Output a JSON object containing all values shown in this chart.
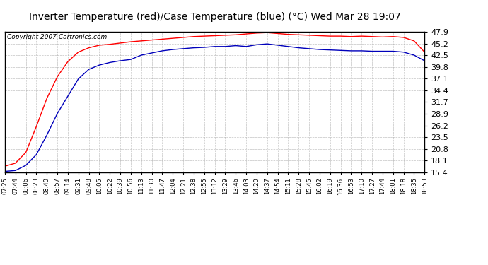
{
  "title": "Inverter Temperature (red)/Case Temperature (blue) (°C) Wed Mar 28 19:07",
  "copyright": "Copyright 2007 Cartronics.com",
  "yticks": [
    15.4,
    18.1,
    20.8,
    23.5,
    26.2,
    28.9,
    31.7,
    34.4,
    37.1,
    39.8,
    42.5,
    45.2,
    47.9
  ],
  "ymin": 15.4,
  "ymax": 47.9,
  "red_color": "#ff0000",
  "blue_color": "#0000bb",
  "bg_color": "#ffffff",
  "grid_color": "#aaaaaa",
  "xtick_labels": [
    "07:25",
    "07:44",
    "08:06",
    "08:23",
    "08:40",
    "08:57",
    "09:14",
    "09:31",
    "09:48",
    "10:05",
    "10:22",
    "10:39",
    "10:56",
    "11:13",
    "11:30",
    "11:47",
    "12:04",
    "12:21",
    "12:38",
    "12:55",
    "13:12",
    "13:29",
    "13:46",
    "14:03",
    "14:20",
    "14:37",
    "14:54",
    "15:11",
    "15:28",
    "15:45",
    "16:02",
    "16:19",
    "16:36",
    "16:53",
    "17:10",
    "17:27",
    "17:44",
    "18:01",
    "18:18",
    "18:35",
    "18:53"
  ],
  "red_data": [
    16.8,
    17.5,
    20.0,
    26.0,
    32.5,
    37.5,
    41.0,
    43.2,
    44.2,
    44.8,
    45.0,
    45.3,
    45.6,
    45.8,
    46.0,
    46.2,
    46.4,
    46.6,
    46.8,
    46.9,
    47.0,
    47.1,
    47.2,
    47.4,
    47.6,
    47.7,
    47.5,
    47.3,
    47.2,
    47.1,
    47.0,
    46.9,
    46.9,
    46.8,
    46.9,
    46.8,
    46.7,
    46.8,
    46.6,
    45.8,
    43.2
  ],
  "blue_data": [
    15.6,
    15.8,
    17.0,
    19.5,
    24.0,
    29.0,
    33.0,
    37.0,
    39.2,
    40.2,
    40.8,
    41.2,
    41.5,
    42.5,
    43.0,
    43.5,
    43.8,
    44.0,
    44.2,
    44.3,
    44.5,
    44.5,
    44.7,
    44.5,
    44.9,
    45.1,
    44.8,
    44.5,
    44.2,
    44.0,
    43.8,
    43.7,
    43.6,
    43.5,
    43.5,
    43.4,
    43.4,
    43.4,
    43.2,
    42.5,
    41.2
  ],
  "title_fontsize": 10,
  "copyright_fontsize": 6.5,
  "ytick_fontsize": 8,
  "xtick_fontsize": 6
}
